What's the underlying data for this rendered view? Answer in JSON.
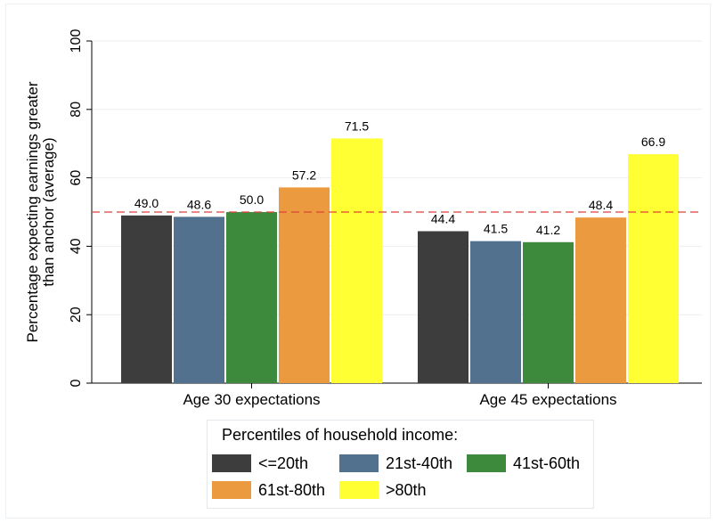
{
  "chart_data": {
    "type": "bar",
    "categories": [
      "Age 30 expectations",
      "Age 45 expectations"
    ],
    "series": [
      {
        "name": "<=20th",
        "values": [
          49.0,
          44.4
        ],
        "color": "#3d3d3d"
      },
      {
        "name": "21st-40th",
        "values": [
          48.6,
          41.5
        ],
        "color": "#51718f"
      },
      {
        "name": "41st-60th",
        "values": [
          50.0,
          41.2
        ],
        "color": "#3d8a3c"
      },
      {
        "name": "61st-80th",
        "values": [
          57.2,
          48.4
        ],
        "color": "#eb9a3f"
      },
      {
        "name": ">80th",
        "values": [
          71.5,
          66.9
        ],
        "color": "#ffff33"
      }
    ],
    "value_labels": [
      [
        "49.0",
        "44.4"
      ],
      [
        "48.6",
        "41.5"
      ],
      [
        "50.0",
        "41.2"
      ],
      [
        "57.2",
        "48.4"
      ],
      [
        "71.5",
        "66.9"
      ]
    ],
    "ylabel_lines": [
      "Percentage expecting earnings greater",
      "than anchor (average)"
    ],
    "ylim": [
      0,
      100
    ],
    "yticks": [
      0,
      20,
      40,
      60,
      80,
      100
    ],
    "ytick_labels": [
      "0",
      "20",
      "40",
      "60",
      "80",
      "100"
    ],
    "reference_line": {
      "value": 50,
      "color": "#e0403a",
      "style": "dashed"
    },
    "grid": true,
    "legend_title": "Percentiles of household income:",
    "legend_position": "bottom"
  }
}
